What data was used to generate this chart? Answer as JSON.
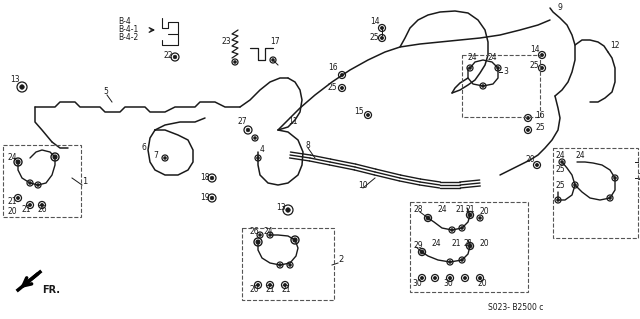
{
  "bg_color": "#ffffff",
  "line_color": "#1a1a1a",
  "diagram_code": "S023- B2500 c",
  "fig_w": 6.4,
  "fig_h": 3.19,
  "dpi": 100
}
